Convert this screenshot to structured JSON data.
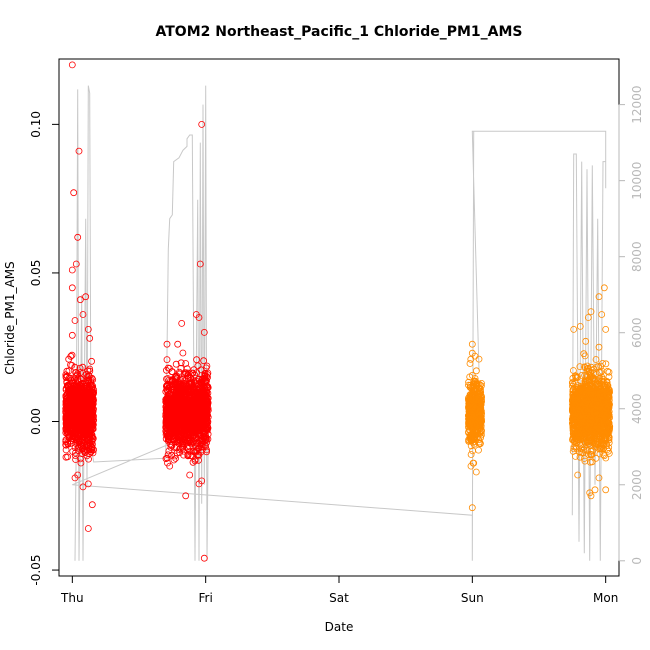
{
  "chart_data": {
    "type": "scatter",
    "title": "ATOM2 Northeast_Pacific_1 Chloride_PM1_AMS",
    "xlabel": "Date",
    "ylabel": "Chloride_PM1_AMS",
    "x_ticks": [
      "Thu",
      "Fri",
      "Sat",
      "Sun",
      "Mon"
    ],
    "xlim": [
      -0.1,
      4.1
    ],
    "ylim": [
      -0.052,
      0.122
    ],
    "y_ticks": [
      -0.05,
      0.0,
      0.05,
      0.1
    ],
    "y_tick_labels": [
      "-0.05",
      "0.00",
      "0.05",
      "0.10"
    ],
    "y2_ticks": [
      0,
      2000,
      4000,
      6000,
      8000,
      10000,
      12000
    ],
    "y2_range": [
      -400,
      13200
    ],
    "grid": false,
    "colors": {
      "series_1": "#ff0000",
      "series_2": "#ff8c00",
      "altitude": "#c8c8c8"
    },
    "series": [
      {
        "color": "#ff0000",
        "clusters": [
          {
            "x_range": [
              -0.05,
              0.16
            ],
            "core_sd": 0.006,
            "points": [
              [
                0.0,
                0.12
              ],
              [
                0.01,
                0.077
              ],
              [
                0.05,
                0.091
              ],
              [
                0.04,
                0.062
              ],
              [
                0.03,
                0.053
              ],
              [
                0.0,
                0.051
              ],
              [
                0.0,
                0.045
              ],
              [
                0.06,
                0.041
              ],
              [
                0.1,
                0.042
              ],
              [
                0.02,
                0.034
              ],
              [
                0.08,
                0.036
              ],
              [
                0.12,
                0.031
              ],
              [
                0.0,
                0.029
              ],
              [
                0.13,
                0.028
              ],
              [
                0.02,
                -0.019
              ],
              [
                0.08,
                -0.022
              ],
              [
                0.12,
                -0.021
              ],
              [
                0.12,
                -0.036
              ],
              [
                0.15,
                -0.028
              ],
              [
                0.04,
                -0.018
              ]
            ]
          },
          {
            "x_range": [
              0.7,
              1.02
            ],
            "core_sd": 0.006,
            "points": [
              [
                0.97,
                0.1
              ],
              [
                0.96,
                0.053
              ],
              [
                0.93,
                0.036
              ],
              [
                0.95,
                0.035
              ],
              [
                0.82,
                0.033
              ],
              [
                0.99,
                0.03
              ],
              [
                0.71,
                0.026
              ],
              [
                0.79,
                0.026
              ],
              [
                0.85,
                -0.025
              ],
              [
                0.95,
                -0.021
              ],
              [
                0.97,
                -0.02
              ],
              [
                0.99,
                -0.046
              ],
              [
                0.73,
                -0.015
              ],
              [
                0.88,
                -0.018
              ]
            ]
          }
        ]
      },
      {
        "color": "#ff8c00",
        "clusters": [
          {
            "x_range": [
              2.97,
              3.07
            ],
            "core_sd": 0.005,
            "points": [
              [
                3.0,
                0.026
              ],
              [
                3.0,
                0.023
              ],
              [
                3.02,
                0.022
              ],
              [
                3.05,
                0.021
              ],
              [
                2.99,
                -0.015
              ],
              [
                3.01,
                -0.014
              ],
              [
                3.03,
                -0.017
              ],
              [
                3.0,
                -0.029
              ]
            ]
          },
          {
            "x_range": [
              3.75,
              4.03
            ],
            "core_sd": 0.006,
            "points": [
              [
                3.99,
                0.045
              ],
              [
                3.95,
                0.042
              ],
              [
                3.89,
                0.037
              ],
              [
                3.97,
                0.036
              ],
              [
                4.0,
                0.031
              ],
              [
                3.87,
                0.035
              ],
              [
                3.81,
                0.032
              ],
              [
                3.76,
                0.031
              ],
              [
                3.85,
                0.027
              ],
              [
                3.95,
                0.025
              ],
              [
                3.88,
                -0.024
              ],
              [
                3.92,
                -0.023
              ],
              [
                3.89,
                -0.025
              ],
              [
                4.0,
                -0.023
              ],
              [
                3.79,
                -0.018
              ],
              [
                3.95,
                -0.019
              ]
            ]
          }
        ]
      }
    ],
    "altitude_line": [
      [
        0.02,
        0
      ],
      [
        0.03,
        3200
      ],
      [
        0.04,
        12400
      ],
      [
        0.05,
        0
      ],
      [
        0.07,
        7000
      ],
      [
        0.08,
        0
      ],
      [
        0.1,
        9000
      ],
      [
        0.11,
        2000
      ],
      [
        0.12,
        12500
      ],
      [
        0.13,
        12300
      ],
      [
        0.14,
        3000
      ],
      [
        0.16,
        2600
      ],
      [
        0.7,
        2700
      ],
      [
        0.72,
        8200
      ],
      [
        0.73,
        9000
      ],
      [
        0.75,
        9100
      ],
      [
        0.76,
        10500
      ],
      [
        0.8,
        10600
      ],
      [
        0.83,
        10800
      ],
      [
        0.86,
        10900
      ],
      [
        0.86,
        11100
      ],
      [
        0.88,
        11200
      ],
      [
        0.9,
        11200
      ],
      [
        0.92,
        0
      ],
      [
        0.93,
        5000
      ],
      [
        0.94,
        9500
      ],
      [
        0.95,
        0
      ],
      [
        0.96,
        11000
      ],
      [
        0.97,
        1500
      ],
      [
        0.98,
        12000
      ],
      [
        0.99,
        2000
      ],
      [
        1.0,
        12500
      ],
      [
        1.01,
        0
      ],
      [
        1.02,
        3500
      ],
      [
        0.0,
        2000
      ],
      [
        3.0,
        1200
      ],
      [
        3.0,
        0
      ],
      [
        3.01,
        11300
      ],
      [
        3.03,
        11300
      ],
      [
        3.0,
        11300
      ],
      [
        3.05,
        5000
      ],
      [
        3.0,
        11300
      ],
      [
        4.0,
        11300
      ],
      [
        4.0,
        9800
      ],
      [
        4.0,
        10500
      ],
      [
        3.98,
        10500
      ],
      [
        3.96,
        0
      ],
      [
        3.94,
        9000
      ],
      [
        3.92,
        2000
      ],
      [
        3.9,
        10400
      ],
      [
        3.88,
        0
      ],
      [
        3.86,
        10300
      ],
      [
        3.84,
        200
      ],
      [
        3.82,
        10500
      ],
      [
        3.8,
        500
      ],
      [
        3.78,
        10700
      ],
      [
        3.76,
        10700
      ],
      [
        3.75,
        1200
      ]
    ]
  }
}
